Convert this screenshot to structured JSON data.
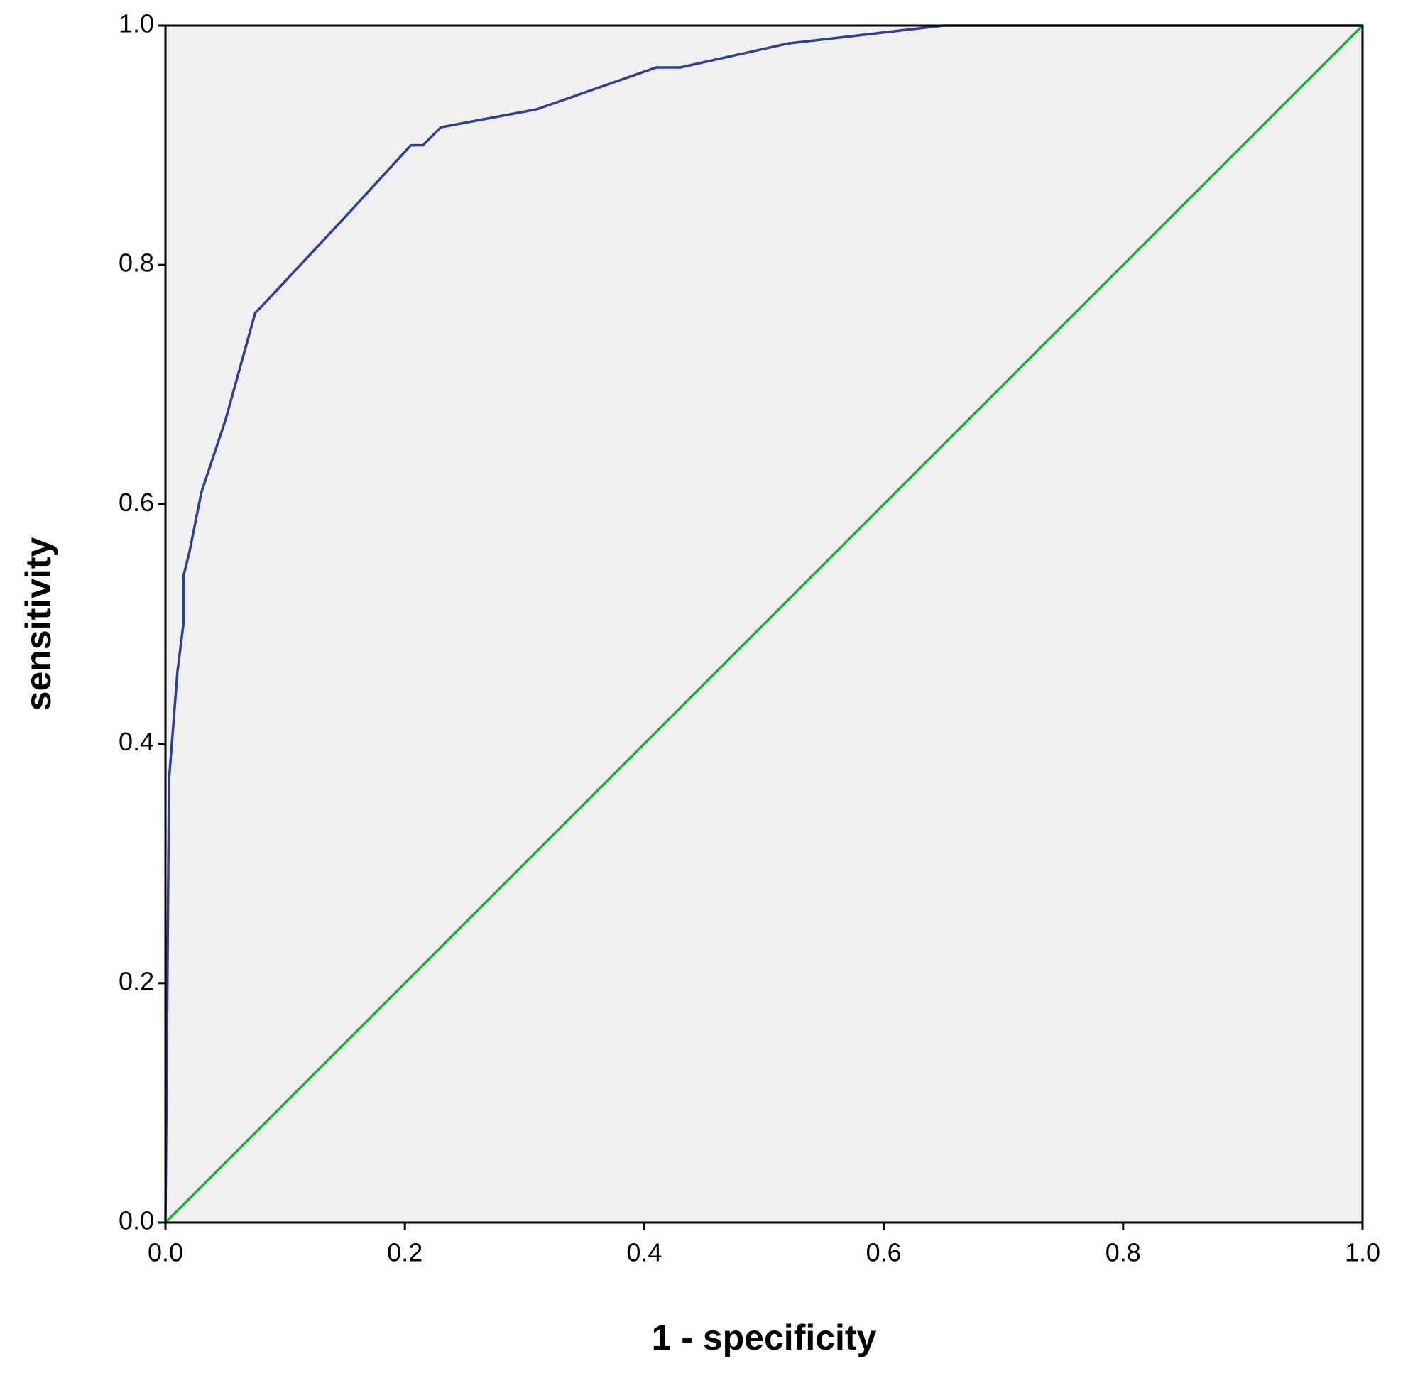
{
  "chart_data": {
    "type": "line",
    "x_label": "1 - specificity",
    "y_label": "sensitivity",
    "xlim": [
      0,
      1
    ],
    "ylim": [
      0,
      1
    ],
    "xticks": [
      {
        "value": 0,
        "label": "0.0"
      },
      0.2,
      0.4,
      0.6,
      0.8,
      {
        "value": 1,
        "label": "1.0"
      }
    ],
    "yticks": [
      {
        "value": 0,
        "label": "0.0"
      },
      0.2,
      0.4,
      0.6,
      0.8,
      {
        "value": 1,
        "label": "1.0"
      }
    ],
    "background": "#f0f0f0",
    "series": [
      {
        "color": "#2e3f9a",
        "x": [
          0,
          0.003,
          0.01,
          0.015,
          0.015,
          0.02,
          0.03,
          0.05,
          0.075,
          0.08,
          0.15,
          0.205,
          0.215,
          0.23,
          0.31,
          0.41,
          0.43,
          0.52,
          0.65,
          1.0
        ],
        "values": [
          0,
          0.37,
          0.46,
          0.5,
          0.54,
          0.56,
          0.61,
          0.67,
          0.76,
          0.765,
          0.84,
          0.9,
          0.9,
          0.915,
          0.93,
          0.965,
          0.965,
          0.985,
          1.0,
          1.0
        ]
      },
      {
        "color": "#1fae3a",
        "x": [
          0,
          1
        ],
        "values": [
          0,
          1
        ]
      }
    ]
  }
}
